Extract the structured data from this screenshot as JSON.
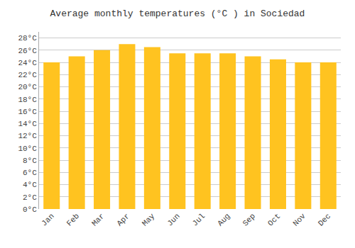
{
  "chart_data": {
    "type": "bar",
    "title": "Average monthly temperatures (°C ) in Sociedad",
    "categories": [
      "Jan",
      "Feb",
      "Mar",
      "Apr",
      "May",
      "Jun",
      "Jul",
      "Aug",
      "Sep",
      "Oct",
      "Nov",
      "Dec"
    ],
    "values": [
      24.0,
      25.0,
      26.0,
      27.0,
      26.5,
      25.5,
      25.5,
      25.5,
      25.0,
      24.5,
      24.0,
      24.0
    ],
    "color": "#FFC320",
    "ylim": [
      0,
      29
    ],
    "yticks": [
      {
        "value": 0,
        "label": "0°C"
      },
      {
        "value": 2,
        "label": "2°C"
      },
      {
        "value": 4,
        "label": "4°C"
      },
      {
        "value": 6,
        "label": "6°C"
      },
      {
        "value": 8,
        "label": "8°C"
      },
      {
        "value": 10,
        "label": "10°C"
      },
      {
        "value": 12,
        "label": "12°C"
      },
      {
        "value": 14,
        "label": "14°C"
      },
      {
        "value": 16,
        "label": "16°C"
      },
      {
        "value": 18,
        "label": "18°C"
      },
      {
        "value": 20,
        "label": "20°C"
      },
      {
        "value": 22,
        "label": "22°C"
      },
      {
        "value": 24,
        "label": "24°C"
      },
      {
        "value": 26,
        "label": "26°C"
      },
      {
        "value": 28,
        "label": "28°C"
      }
    ],
    "grid": true
  }
}
